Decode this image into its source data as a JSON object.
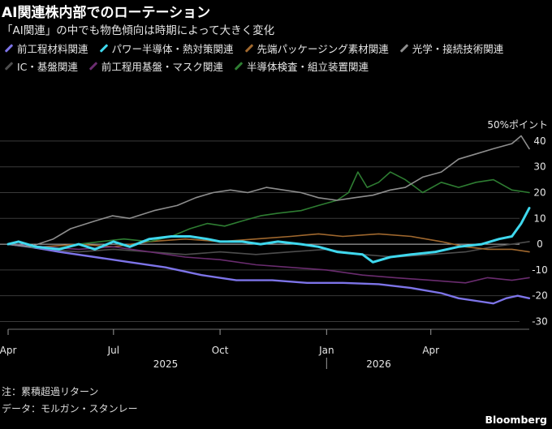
{
  "title": "AI関連株内部でのローテーション",
  "subtitle": "「AI関連」の中でも物色傾向は時期によって大きく変化",
  "notes": {
    "note": "注：累積超過リターン",
    "data_source": "データ：モルガン・スタンレー"
  },
  "source_logo": "Bloomberg",
  "colors": {
    "background": "#000000",
    "grid": "#3a3a3a",
    "zero_line": "#bfbfbf"
  },
  "chart_data": {
    "type": "line",
    "y_unit_label": "50%ポイント",
    "y_ticks": [
      40,
      30,
      20,
      10,
      0,
      -10,
      -20,
      -30
    ],
    "ylim": [
      -33,
      45
    ],
    "x_range": [
      "2025-04-01",
      "2026-06-25"
    ],
    "x_ticks": [
      {
        "label": "Apr",
        "date": "2025-04-01"
      },
      {
        "label": "Jul",
        "date": "2025-07-01"
      },
      {
        "label": "Oct",
        "date": "2025-10-01"
      },
      {
        "label": "Jan",
        "date": "2026-01-01"
      },
      {
        "label": "Apr",
        "date": "2026-04-01"
      }
    ],
    "year_labels": [
      {
        "label": "2025",
        "date": "2025-08-15"
      },
      {
        "label": "2026",
        "date": "2026-02-15"
      }
    ],
    "year_divider": "2026-01-01",
    "series": [
      {
        "name": "前工程材料関連",
        "color": "#7d74e8",
        "points": [
          [
            "2025-04-01",
            0
          ],
          [
            "2025-04-20",
            -1
          ],
          [
            "2025-05-15",
            -3
          ],
          [
            "2025-06-15",
            -5
          ],
          [
            "2025-07-15",
            -7
          ],
          [
            "2025-08-15",
            -9
          ],
          [
            "2025-09-15",
            -12
          ],
          [
            "2025-10-15",
            -14
          ],
          [
            "2025-11-15",
            -14
          ],
          [
            "2025-12-15",
            -15
          ],
          [
            "2026-01-15",
            -15
          ],
          [
            "2026-02-15",
            -15.5
          ],
          [
            "2026-03-15",
            -17
          ],
          [
            "2026-04-10",
            -19
          ],
          [
            "2026-04-25",
            -21
          ],
          [
            "2026-05-10",
            -22
          ],
          [
            "2026-05-25",
            -23
          ],
          [
            "2026-06-05",
            -21
          ],
          [
            "2026-06-15",
            -20
          ],
          [
            "2026-06-25",
            -21
          ]
        ]
      },
      {
        "name": "パワー半導体・熱対策関連",
        "color": "#3fd8ee",
        "points": [
          [
            "2025-04-01",
            0
          ],
          [
            "2025-04-10",
            1
          ],
          [
            "2025-04-25",
            -1
          ],
          [
            "2025-05-15",
            -2
          ],
          [
            "2025-06-01",
            0
          ],
          [
            "2025-06-15",
            -2
          ],
          [
            "2025-07-01",
            1
          ],
          [
            "2025-07-15",
            -1
          ],
          [
            "2025-08-01",
            2
          ],
          [
            "2025-08-20",
            3
          ],
          [
            "2025-09-05",
            3
          ],
          [
            "2025-09-20",
            2
          ],
          [
            "2025-10-01",
            1
          ],
          [
            "2025-10-20",
            1
          ],
          [
            "2025-11-05",
            0
          ],
          [
            "2025-11-20",
            1
          ],
          [
            "2025-12-10",
            0
          ],
          [
            "2025-12-25",
            -1
          ],
          [
            "2026-01-10",
            -3
          ],
          [
            "2026-02-01",
            -4
          ],
          [
            "2026-02-10",
            -7
          ],
          [
            "2026-02-25",
            -5
          ],
          [
            "2026-03-15",
            -4
          ],
          [
            "2026-04-05",
            -3
          ],
          [
            "2026-04-25",
            -1
          ],
          [
            "2026-05-15",
            0
          ],
          [
            "2026-05-30",
            2
          ],
          [
            "2026-06-10",
            3
          ],
          [
            "2026-06-18",
            8
          ],
          [
            "2026-06-25",
            14
          ]
        ]
      },
      {
        "name": "先端パッケージング素材関連",
        "color": "#a0682e",
        "points": [
          [
            "2025-04-01",
            0
          ],
          [
            "2025-05-01",
            -1
          ],
          [
            "2025-06-01",
            0
          ],
          [
            "2025-07-01",
            -1
          ],
          [
            "2025-08-01",
            1
          ],
          [
            "2025-09-01",
            2
          ],
          [
            "2025-10-01",
            1
          ],
          [
            "2025-11-01",
            2
          ],
          [
            "2025-12-01",
            3
          ],
          [
            "2025-12-25",
            4
          ],
          [
            "2026-01-15",
            3
          ],
          [
            "2026-02-15",
            4
          ],
          [
            "2026-03-15",
            3
          ],
          [
            "2026-04-10",
            1
          ],
          [
            "2026-05-01",
            -1
          ],
          [
            "2026-05-20",
            -2
          ],
          [
            "2026-06-10",
            -2
          ],
          [
            "2026-06-25",
            -3
          ]
        ]
      },
      {
        "name": "光学・接続技術関連",
        "color": "#8e8e8e",
        "points": [
          [
            "2025-04-01",
            0
          ],
          [
            "2025-04-20",
            -1
          ],
          [
            "2025-05-10",
            2
          ],
          [
            "2025-05-25",
            6
          ],
          [
            "2025-06-15",
            9
          ],
          [
            "2025-06-30",
            11
          ],
          [
            "2025-07-15",
            10
          ],
          [
            "2025-08-05",
            13
          ],
          [
            "2025-08-25",
            15
          ],
          [
            "2025-09-10",
            18
          ],
          [
            "2025-09-25",
            20
          ],
          [
            "2025-10-10",
            21
          ],
          [
            "2025-10-25",
            20
          ],
          [
            "2025-11-10",
            22
          ],
          [
            "2025-11-25",
            21
          ],
          [
            "2025-12-10",
            20
          ],
          [
            "2025-12-25",
            18
          ],
          [
            "2026-01-10",
            17
          ],
          [
            "2026-01-25",
            18
          ],
          [
            "2026-02-10",
            19
          ],
          [
            "2026-02-25",
            21
          ],
          [
            "2026-03-10",
            22
          ],
          [
            "2026-03-25",
            26
          ],
          [
            "2026-04-10",
            28
          ],
          [
            "2026-04-25",
            33
          ],
          [
            "2026-05-10",
            35
          ],
          [
            "2026-05-25",
            37
          ],
          [
            "2026-06-10",
            39
          ],
          [
            "2026-06-18",
            42
          ],
          [
            "2026-06-25",
            37
          ]
        ]
      },
      {
        "name": "IC・基盤関連",
        "color": "#4d4d4d",
        "points": [
          [
            "2025-04-01",
            0
          ],
          [
            "2025-05-01",
            -2
          ],
          [
            "2025-06-01",
            -3
          ],
          [
            "2025-07-01",
            -2
          ],
          [
            "2025-08-01",
            -3
          ],
          [
            "2025-09-01",
            -4
          ],
          [
            "2025-10-01",
            -3
          ],
          [
            "2025-11-01",
            -4
          ],
          [
            "2025-12-01",
            -3
          ],
          [
            "2026-01-01",
            -2
          ],
          [
            "2026-02-01",
            -4
          ],
          [
            "2026-03-01",
            -5
          ],
          [
            "2026-04-01",
            -4
          ],
          [
            "2026-05-01",
            -3
          ],
          [
            "2026-05-25",
            -1
          ],
          [
            "2026-06-10",
            0
          ],
          [
            "2026-06-25",
            1
          ]
        ]
      },
      {
        "name": "前工程用基盤・マスク関連",
        "color": "#6a2c6f",
        "points": [
          [
            "2025-04-01",
            0
          ],
          [
            "2025-05-01",
            -1
          ],
          [
            "2025-06-01",
            -2
          ],
          [
            "2025-07-01",
            -1
          ],
          [
            "2025-08-01",
            -3
          ],
          [
            "2025-09-01",
            -5
          ],
          [
            "2025-10-01",
            -6
          ],
          [
            "2025-11-01",
            -8
          ],
          [
            "2025-12-01",
            -9
          ],
          [
            "2026-01-01",
            -10
          ],
          [
            "2026-02-01",
            -12
          ],
          [
            "2026-03-01",
            -13
          ],
          [
            "2026-04-01",
            -14
          ],
          [
            "2026-05-01",
            -15
          ],
          [
            "2026-05-20",
            -13
          ],
          [
            "2026-06-10",
            -14
          ],
          [
            "2026-06-25",
            -13
          ]
        ]
      },
      {
        "name": "半導体検査・組立装置関連",
        "color": "#2e7d32",
        "points": [
          [
            "2025-04-01",
            0
          ],
          [
            "2025-04-20",
            -1
          ],
          [
            "2025-05-10",
            -2
          ],
          [
            "2025-06-01",
            0
          ],
          [
            "2025-06-20",
            1
          ],
          [
            "2025-07-10",
            2
          ],
          [
            "2025-08-01",
            1
          ],
          [
            "2025-08-20",
            3
          ],
          [
            "2025-09-05",
            6
          ],
          [
            "2025-09-20",
            8
          ],
          [
            "2025-10-05",
            7
          ],
          [
            "2025-10-20",
            9
          ],
          [
            "2025-11-05",
            11
          ],
          [
            "2025-11-20",
            12
          ],
          [
            "2025-12-10",
            13
          ],
          [
            "2025-12-25",
            15
          ],
          [
            "2026-01-10",
            17
          ],
          [
            "2026-01-20",
            20
          ],
          [
            "2026-01-28",
            28
          ],
          [
            "2026-02-05",
            22
          ],
          [
            "2026-02-15",
            24
          ],
          [
            "2026-02-25",
            28
          ],
          [
            "2026-03-10",
            25
          ],
          [
            "2026-03-25",
            20
          ],
          [
            "2026-04-10",
            24
          ],
          [
            "2026-04-25",
            22
          ],
          [
            "2026-05-10",
            24
          ],
          [
            "2026-05-25",
            25
          ],
          [
            "2026-06-10",
            21
          ],
          [
            "2026-06-25",
            20
          ]
        ]
      }
    ]
  }
}
